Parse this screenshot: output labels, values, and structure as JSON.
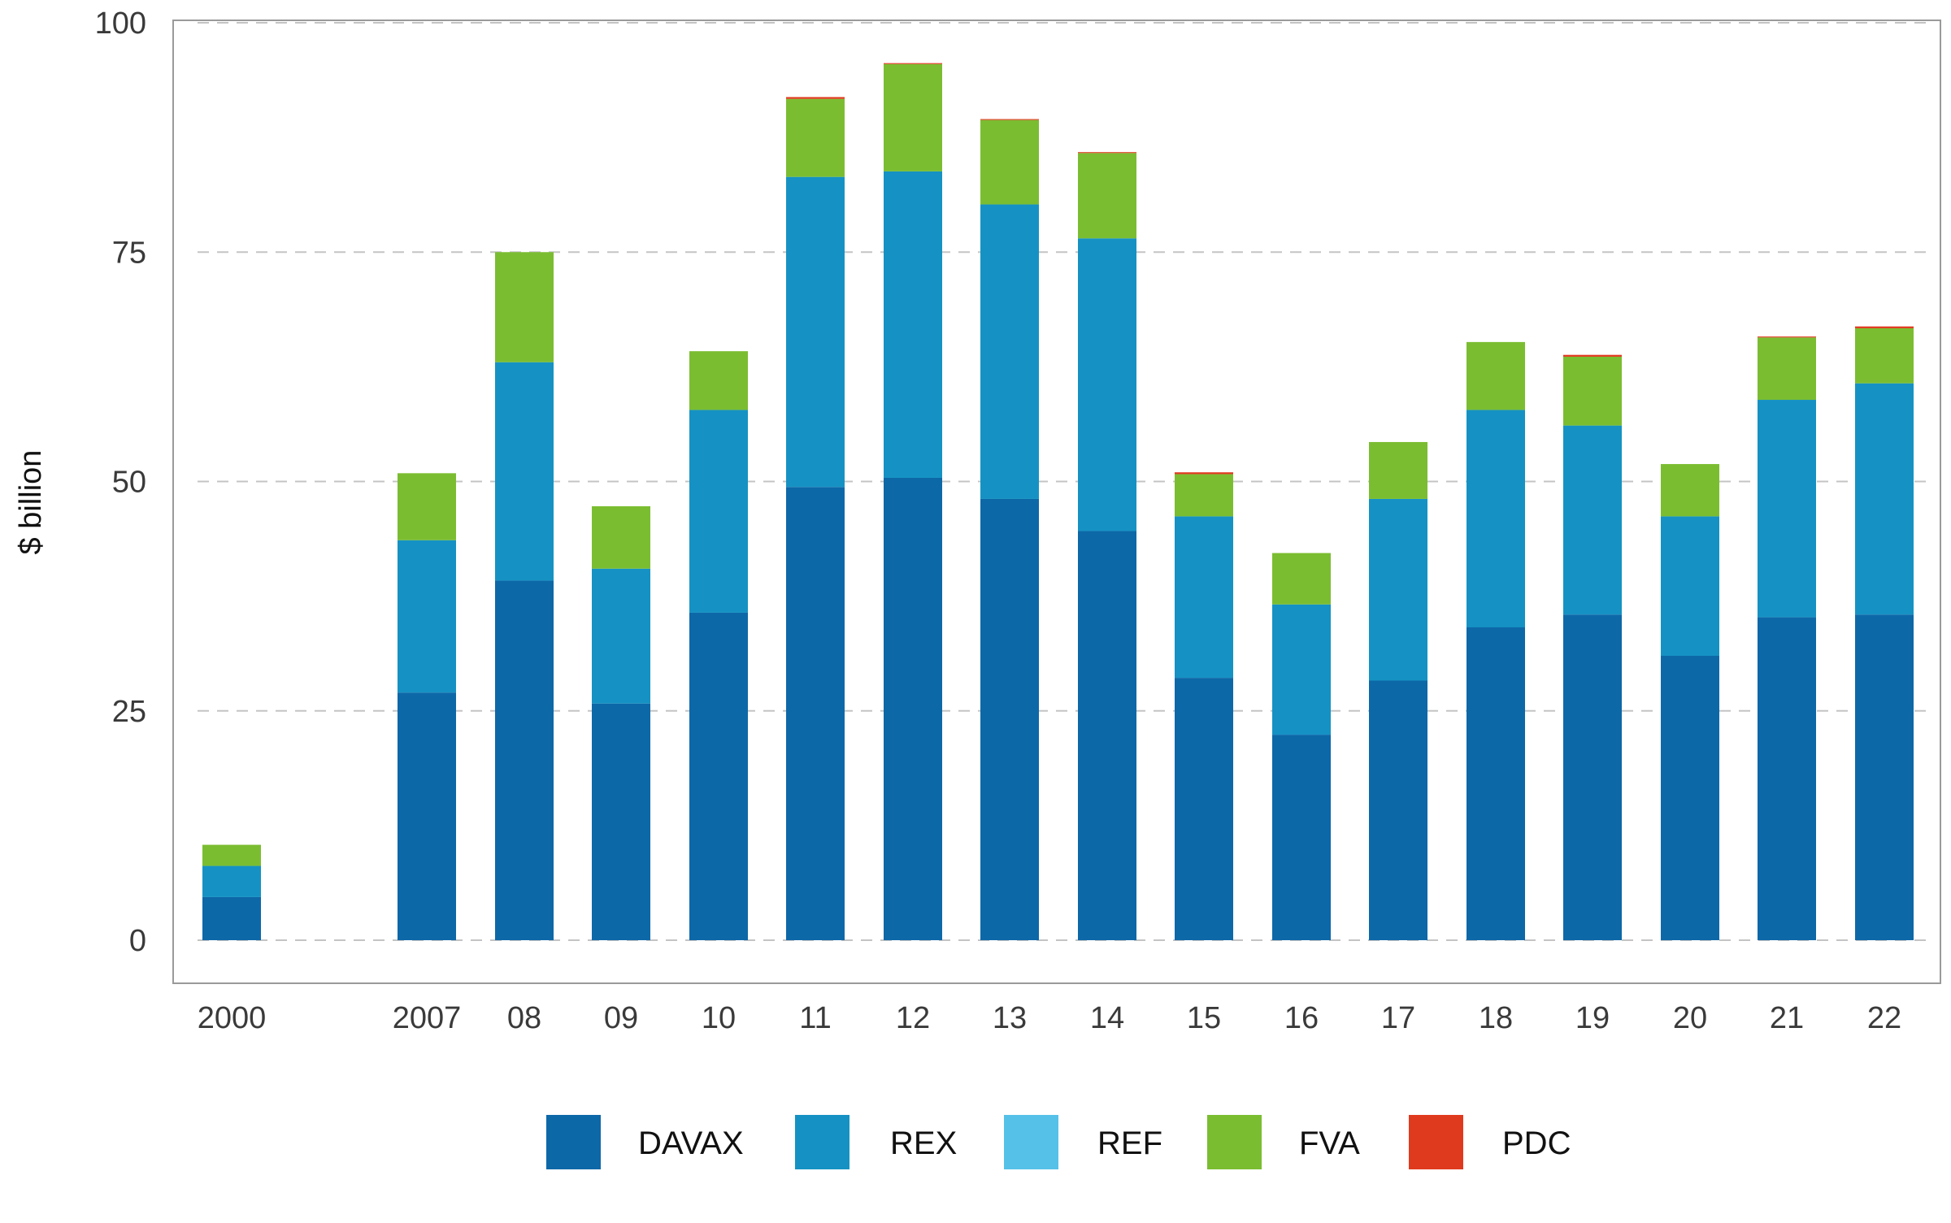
{
  "chart_data": {
    "type": "bar",
    "stacked": true,
    "title": "",
    "xlabel": "",
    "ylabel": "$ billion",
    "ylim": [
      0,
      100
    ],
    "yticks": [
      0,
      25,
      50,
      75,
      100
    ],
    "grid": "horizontal-dashed",
    "legend_position": "bottom",
    "categories": [
      "2000",
      "2007",
      "08",
      "09",
      "10",
      "11",
      "12",
      "13",
      "14",
      "15",
      "16",
      "17",
      "18",
      "19",
      "20",
      "21",
      "22"
    ],
    "series": [
      {
        "name": "DAVAX",
        "color": "#0d68a8",
        "values": [
          4.7,
          27.0,
          39.2,
          25.8,
          35.7,
          49.4,
          50.4,
          48.1,
          44.6,
          28.6,
          22.4,
          28.3,
          34.1,
          35.5,
          31.0,
          35.2,
          35.5
        ]
      },
      {
        "name": "REX",
        "color": "#1592c3",
        "values": [
          3.4,
          16.6,
          23.8,
          14.7,
          22.1,
          33.8,
          33.4,
          32.1,
          31.9,
          17.6,
          14.2,
          19.8,
          23.7,
          20.6,
          15.2,
          23.7,
          25.2
        ]
      },
      {
        "name": "REF",
        "color": "#56c1e8",
        "values": [
          0,
          0,
          0,
          0,
          0,
          0,
          0,
          0,
          0,
          0,
          0,
          0,
          0,
          0,
          0,
          0,
          0
        ]
      },
      {
        "name": "FVA",
        "color": "#7bbd31",
        "values": [
          2.3,
          7.3,
          12.0,
          6.8,
          6.4,
          8.5,
          11.7,
          9.2,
          9.3,
          4.6,
          5.6,
          6.2,
          7.4,
          7.5,
          5.7,
          6.8,
          6.0
        ]
      },
      {
        "name": "PDC",
        "color": "#e03a1e",
        "values": [
          0,
          0,
          0,
          0,
          0,
          0.2,
          0.1,
          0.1,
          0.1,
          0.2,
          0,
          0,
          0,
          0.2,
          0,
          0.1,
          0.2
        ]
      }
    ]
  }
}
